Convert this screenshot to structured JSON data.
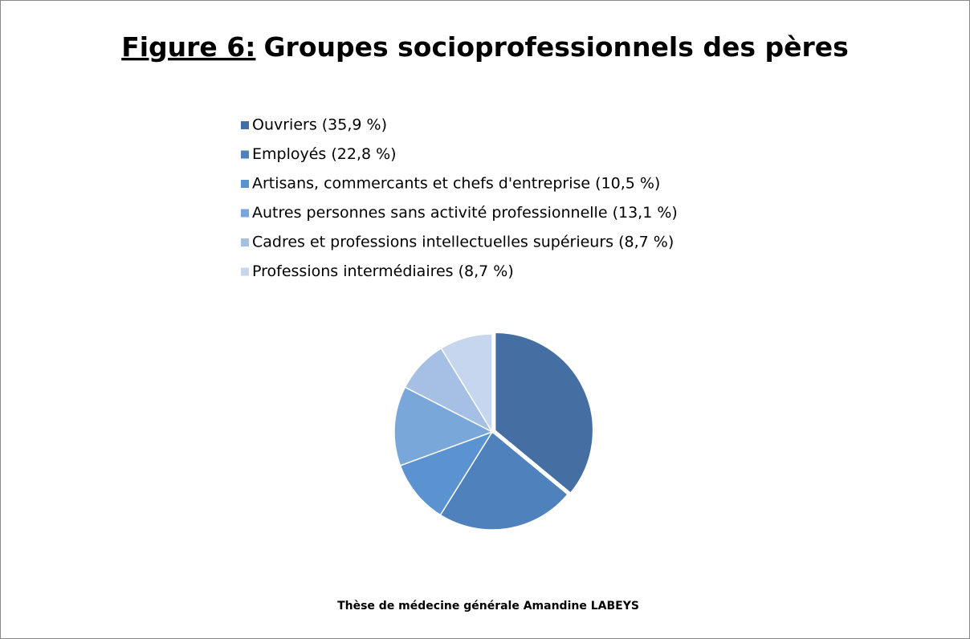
{
  "chart_data": {
    "type": "pie",
    "title_prefix": "Figure 6:",
    "title": "Groupes socioprofessionnels des pères",
    "categories": [
      "Ouvriers (35,9 %)",
      "Employés (22,8 %)",
      "Artisans, commercants et chefs d'entreprise (10,5 %)",
      "Autres personnes sans activité professionnelle (13,1 %)",
      "Cadres et professions intellectuelles supérieurs  (8,7 %)",
      "Professions intermédiaires (8,7 %)"
    ],
    "values": [
      35.9,
      22.8,
      10.5,
      13.1,
      8.7,
      8.7
    ],
    "colors": [
      "#456fa3",
      "#4f81bd",
      "#5a93cf",
      "#7aa7da",
      "#a5c0e4",
      "#c6d6ee"
    ],
    "source": "Thèse de médecine générale Amandine LABEYS"
  }
}
